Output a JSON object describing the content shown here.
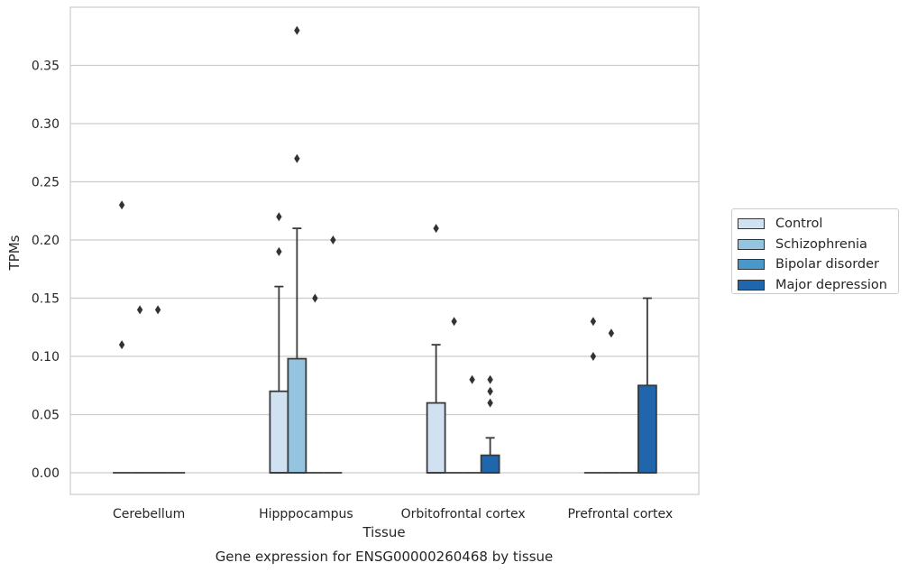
{
  "chart_data": {
    "type": "box",
    "title": "Gene expression for ENSG00000260468 by tissue",
    "xlabel": "Tissue",
    "ylabel": "TPMs",
    "ylim": [
      -0.018,
      0.398
    ],
    "yticks": [
      "0.00",
      "0.05",
      "0.10",
      "0.15",
      "0.20",
      "0.25",
      "0.30",
      "0.35"
    ],
    "grid": true,
    "legend_position": "right",
    "categories": [
      "Cerebellum",
      "Hipppocampus",
      "Orbitofrontal cortex",
      "Prefrontal cortex"
    ],
    "series": [
      {
        "name": "Control",
        "color": "#d0e1f2",
        "boxes": [
          {
            "q1": 0,
            "median": 0,
            "q3": 0,
            "whisker_low": 0,
            "whisker_high": 0,
            "outliers": [
              0.23,
              0.11
            ]
          },
          {
            "q1": 0,
            "median": 0,
            "q3": 0.07,
            "whisker_low": 0,
            "whisker_high": 0.16,
            "outliers": [
              0.22,
              0.19
            ]
          },
          {
            "q1": 0,
            "median": 0,
            "q3": 0.06,
            "whisker_low": 0,
            "whisker_high": 0.11,
            "outliers": [
              0.21
            ]
          },
          {
            "q1": 0,
            "median": 0,
            "q3": 0,
            "whisker_low": 0,
            "whisker_high": 0,
            "outliers": [
              0.13,
              0.1
            ]
          }
        ]
      },
      {
        "name": "Schizophrenia",
        "color": "#94c4df",
        "boxes": [
          {
            "q1": 0,
            "median": 0,
            "q3": 0,
            "whisker_low": 0,
            "whisker_high": 0,
            "outliers": [
              0.14
            ]
          },
          {
            "q1": 0,
            "median": 0,
            "q3": 0.098,
            "whisker_low": 0,
            "whisker_high": 0.21,
            "outliers": [
              0.38,
              0.27
            ]
          },
          {
            "q1": 0,
            "median": 0,
            "q3": 0,
            "whisker_low": 0,
            "whisker_high": 0,
            "outliers": [
              0.13
            ]
          },
          {
            "q1": 0,
            "median": 0,
            "q3": 0,
            "whisker_low": 0,
            "whisker_high": 0,
            "outliers": [
              0.12
            ]
          }
        ]
      },
      {
        "name": "Bipolar disorder",
        "color": "#4a98c9",
        "boxes": [
          {
            "q1": 0,
            "median": 0,
            "q3": 0,
            "whisker_low": 0,
            "whisker_high": 0,
            "outliers": [
              0.14
            ]
          },
          {
            "q1": 0,
            "median": 0,
            "q3": 0,
            "whisker_low": 0,
            "whisker_high": 0,
            "outliers": [
              0.15
            ]
          },
          {
            "q1": 0,
            "median": 0,
            "q3": 0,
            "whisker_low": 0,
            "whisker_high": 0,
            "outliers": [
              0.08
            ]
          },
          {
            "q1": 0,
            "median": 0,
            "q3": 0,
            "whisker_low": 0,
            "whisker_high": 0,
            "outliers": []
          }
        ]
      },
      {
        "name": "Major depression",
        "color": "#2066ac",
        "boxes": [
          {
            "q1": 0,
            "median": 0,
            "q3": 0,
            "whisker_low": 0,
            "whisker_high": 0,
            "outliers": []
          },
          {
            "q1": 0,
            "median": 0,
            "q3": 0,
            "whisker_low": 0,
            "whisker_high": 0,
            "outliers": [
              0.2
            ]
          },
          {
            "q1": 0,
            "median": 0,
            "q3": 0.015,
            "whisker_low": 0,
            "whisker_high": 0.03,
            "outliers": [
              0.08,
              0.07,
              0.06
            ]
          },
          {
            "q1": 0,
            "median": 0,
            "q3": 0.075,
            "whisker_low": 0,
            "whisker_high": 0.15,
            "outliers": []
          }
        ]
      }
    ]
  }
}
